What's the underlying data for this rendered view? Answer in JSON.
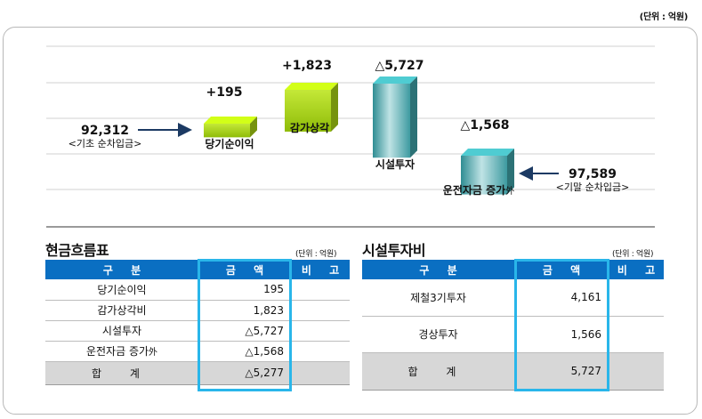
{
  "unit_top": "(단위 : 억원)",
  "chart_data": {
    "type": "waterfall",
    "title": "",
    "categories": [
      "기초 순차입금",
      "당기순이익",
      "감가상각",
      "시설투자",
      "운전자금 증가外",
      "기말 순차입금"
    ],
    "values": [
      92312,
      195,
      1823,
      -5727,
      -1568,
      97589
    ],
    "value_labels": [
      "92,312",
      "+195",
      "+1,823",
      "△5,727",
      "△1,568",
      "97,589"
    ],
    "start_note": {
      "value": "92,312",
      "label": "<기초 순차입금>"
    },
    "end_note": {
      "value": "97,589",
      "label": "<기말 순차입금>"
    },
    "bars": [
      {
        "label": "당기순이익",
        "value_label": "+195",
        "value": 195,
        "color": "#a8d212"
      },
      {
        "label": "감가상각",
        "value_label": "+1,823",
        "value": 1823,
        "color": "#a8d212"
      },
      {
        "label": "시설투자",
        "value_label": "△5,727",
        "value": -5727,
        "color": "#3fa3a8"
      },
      {
        "label": "운전자금 증가",
        "label_suffix": "外",
        "value_label": "△1,568",
        "value": -1568,
        "color": "#3fa3a8"
      }
    ]
  },
  "cashflow_table": {
    "title": "현금흐름표",
    "unit": "(단위 : 억원)",
    "headers": [
      "구 분",
      "금 액",
      "비 고"
    ],
    "rows": [
      {
        "item": "당기순이익",
        "suffix": "",
        "amount": "195",
        "note": ""
      },
      {
        "item": "감가상각비",
        "suffix": "",
        "amount": "1,823",
        "note": ""
      },
      {
        "item": "시설투자",
        "suffix": "",
        "amount": "△5,727",
        "note": ""
      },
      {
        "item": "운전자금 증가",
        "suffix": "外",
        "amount": "△1,568",
        "note": ""
      }
    ],
    "total": {
      "item": "합 계",
      "amount": "△5,277",
      "note": ""
    }
  },
  "capex_table": {
    "title": "시설투자비",
    "unit": "(단위 : 억원)",
    "headers": [
      "구 분",
      "금 액",
      "비 고"
    ],
    "rows": [
      {
        "item": "제철3기투자",
        "amount": "4,161",
        "note": ""
      },
      {
        "item": "경상투자",
        "amount": "1,566",
        "note": ""
      }
    ],
    "total": {
      "item": "합 계",
      "amount": "5,727",
      "note": ""
    }
  }
}
